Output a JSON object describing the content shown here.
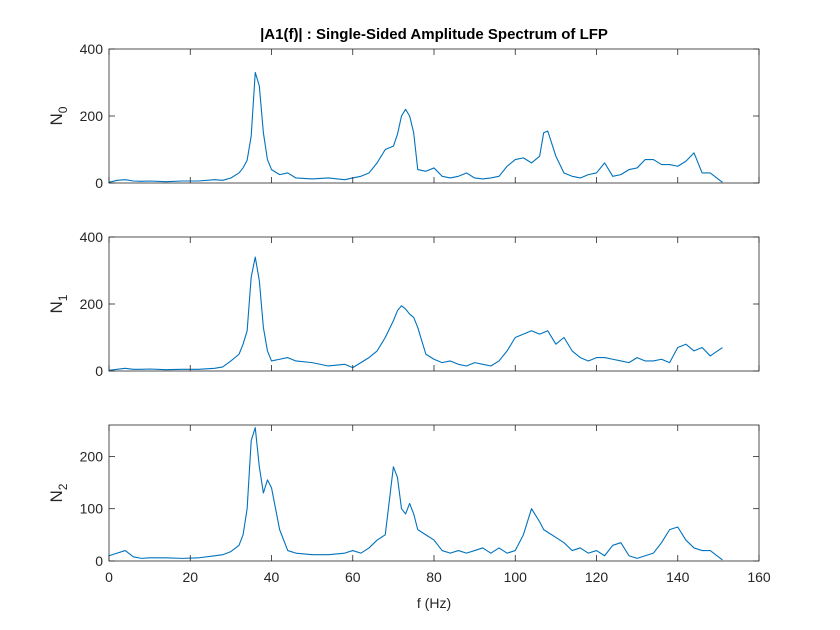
{
  "figure": {
    "title": "|A1(f)| : Single-Sided Amplitude Spectrum of LFP",
    "xlabel": "f (Hz)",
    "line_color": "#0072BD"
  },
  "chart_data": [
    {
      "type": "line",
      "ylabel_base": "N",
      "ylabel_sub": "0",
      "xlim": [
        0,
        160
      ],
      "ylim": [
        0,
        400
      ],
      "xticks": [
        0,
        20,
        40,
        60,
        80,
        100,
        120,
        140,
        160
      ],
      "yticks": [
        0,
        200,
        400
      ],
      "show_xtick_labels": false,
      "x": [
        0,
        2,
        4,
        6,
        8,
        10,
        14,
        18,
        22,
        26,
        28,
        30,
        32,
        33,
        34,
        35,
        36,
        37,
        38,
        39,
        40,
        42,
        44,
        46,
        50,
        54,
        58,
        60,
        62,
        64,
        66,
        68,
        70,
        71,
        72,
        73,
        74,
        75,
        76,
        78,
        80,
        82,
        84,
        86,
        88,
        90,
        92,
        94,
        96,
        98,
        100,
        102,
        104,
        106,
        107,
        108,
        110,
        112,
        114,
        116,
        118,
        120,
        122,
        124,
        126,
        128,
        130,
        132,
        134,
        136,
        138,
        140,
        142,
        144,
        146,
        148,
        151
      ],
      "y": [
        2,
        8,
        10,
        6,
        5,
        6,
        4,
        6,
        6,
        10,
        8,
        15,
        30,
        45,
        68,
        140,
        330,
        290,
        150,
        70,
        40,
        25,
        30,
        15,
        12,
        15,
        10,
        15,
        20,
        30,
        60,
        100,
        110,
        145,
        200,
        220,
        200,
        150,
        40,
        35,
        45,
        20,
        15,
        20,
        30,
        15,
        12,
        15,
        20,
        50,
        70,
        75,
        60,
        80,
        150,
        155,
        80,
        30,
        20,
        15,
        25,
        30,
        60,
        20,
        25,
        40,
        45,
        70,
        70,
        55,
        55,
        50,
        65,
        90,
        30,
        30,
        2
      ]
    },
    {
      "type": "line",
      "ylabel_base": "N",
      "ylabel_sub": "1",
      "xlim": [
        0,
        160
      ],
      "ylim": [
        0,
        400
      ],
      "xticks": [
        0,
        20,
        40,
        60,
        80,
        100,
        120,
        140,
        160
      ],
      "yticks": [
        0,
        200,
        400
      ],
      "show_xtick_labels": false,
      "x": [
        0,
        2,
        4,
        6,
        8,
        10,
        14,
        18,
        22,
        26,
        28,
        30,
        32,
        33,
        34,
        35,
        36,
        37,
        38,
        39,
        40,
        42,
        44,
        46,
        50,
        54,
        58,
        60,
        62,
        64,
        66,
        68,
        70,
        71,
        72,
        73,
        74,
        75,
        76,
        78,
        80,
        82,
        84,
        86,
        88,
        90,
        92,
        94,
        96,
        98,
        100,
        102,
        104,
        106,
        107,
        108,
        110,
        112,
        114,
        116,
        118,
        120,
        122,
        124,
        126,
        128,
        130,
        132,
        134,
        136,
        138,
        140,
        142,
        144,
        146,
        148,
        151
      ],
      "y": [
        2,
        5,
        8,
        5,
        5,
        6,
        4,
        5,
        5,
        8,
        12,
        30,
        50,
        80,
        120,
        280,
        340,
        270,
        130,
        60,
        30,
        35,
        40,
        30,
        25,
        15,
        20,
        10,
        25,
        40,
        60,
        100,
        150,
        180,
        195,
        185,
        170,
        160,
        130,
        50,
        35,
        25,
        30,
        20,
        15,
        25,
        20,
        15,
        30,
        60,
        100,
        110,
        120,
        110,
        115,
        120,
        80,
        100,
        60,
        40,
        30,
        40,
        40,
        35,
        30,
        25,
        40,
        30,
        30,
        35,
        25,
        70,
        80,
        60,
        70,
        45,
        70
      ]
    },
    {
      "type": "line",
      "ylabel_base": "N",
      "ylabel_sub": "2",
      "xlim": [
        0,
        160
      ],
      "ylim": [
        0,
        260
      ],
      "xticks": [
        0,
        20,
        40,
        60,
        80,
        100,
        120,
        140,
        160
      ],
      "yticks": [
        0,
        100,
        200
      ],
      "show_xtick_labels": true,
      "x": [
        0,
        2,
        4,
        6,
        8,
        10,
        14,
        18,
        22,
        26,
        28,
        30,
        32,
        33,
        34,
        35,
        36,
        37,
        38,
        39,
        40,
        42,
        44,
        46,
        50,
        54,
        58,
        60,
        62,
        64,
        66,
        68,
        70,
        71,
        72,
        73,
        74,
        75,
        76,
        78,
        80,
        82,
        84,
        86,
        88,
        90,
        92,
        94,
        96,
        98,
        100,
        102,
        104,
        106,
        107,
        108,
        110,
        112,
        114,
        116,
        118,
        120,
        122,
        124,
        126,
        128,
        130,
        132,
        134,
        136,
        138,
        140,
        142,
        144,
        146,
        148,
        151
      ],
      "y": [
        10,
        15,
        20,
        8,
        5,
        6,
        6,
        5,
        6,
        10,
        12,
        18,
        30,
        50,
        100,
        230,
        255,
        180,
        130,
        155,
        140,
        60,
        20,
        15,
        12,
        12,
        15,
        20,
        15,
        25,
        40,
        50,
        180,
        160,
        100,
        90,
        110,
        90,
        60,
        50,
        40,
        20,
        15,
        20,
        15,
        20,
        25,
        15,
        25,
        15,
        20,
        50,
        100,
        75,
        60,
        55,
        45,
        35,
        20,
        25,
        15,
        20,
        10,
        30,
        35,
        10,
        5,
        10,
        15,
        35,
        60,
        65,
        40,
        25,
        20,
        20,
        2
      ]
    }
  ]
}
